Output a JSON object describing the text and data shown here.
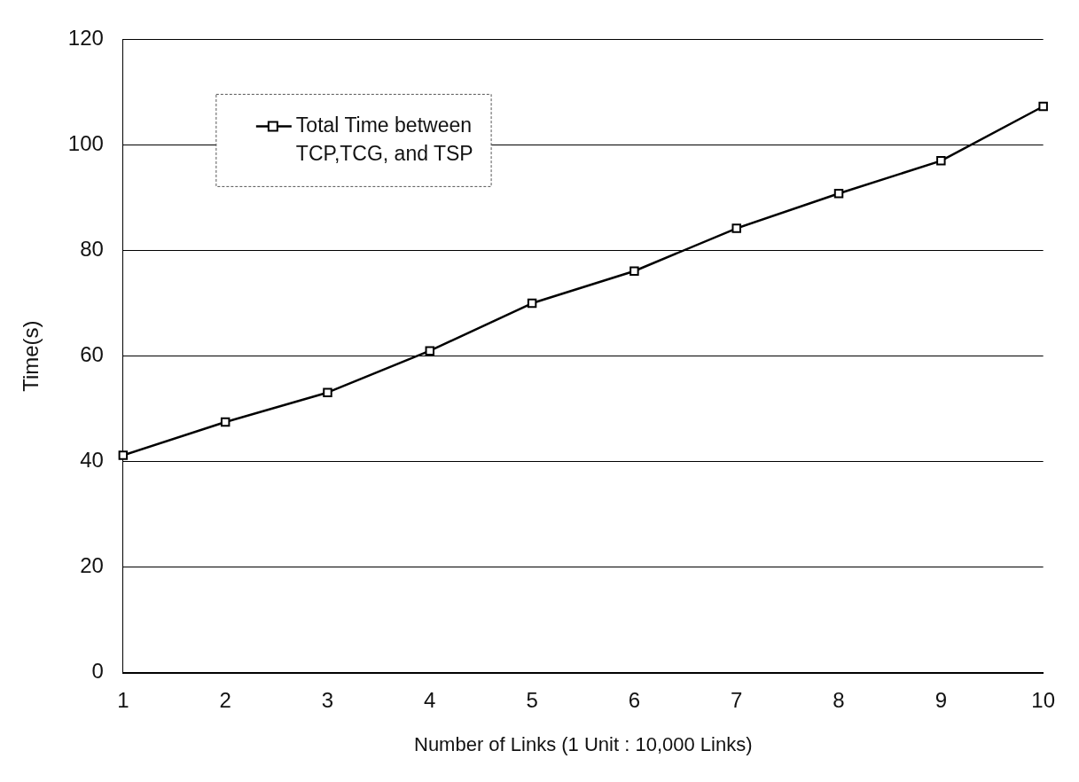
{
  "chart_data": {
    "type": "line",
    "xlabel": "Number of Links (1 Unit : 10,000 Links)",
    "ylabel": "Time(s)",
    "categories": [
      "1",
      "2",
      "3",
      "4",
      "5",
      "6",
      "7",
      "8",
      "9",
      "10"
    ],
    "series": [
      {
        "name": "Total Time between TCP,TCG, and TSP",
        "color": "#000000",
        "values": [
          41.2,
          47.5,
          53.1,
          61.0,
          70.0,
          76.1,
          84.2,
          90.8,
          97.0,
          107.3
        ]
      }
    ],
    "ylim": [
      0,
      120
    ],
    "yticks": [
      0,
      20,
      40,
      60,
      80,
      100,
      120
    ],
    "grid": "y",
    "legend": "top left",
    "marker": "square",
    "line_style": "solid"
  }
}
